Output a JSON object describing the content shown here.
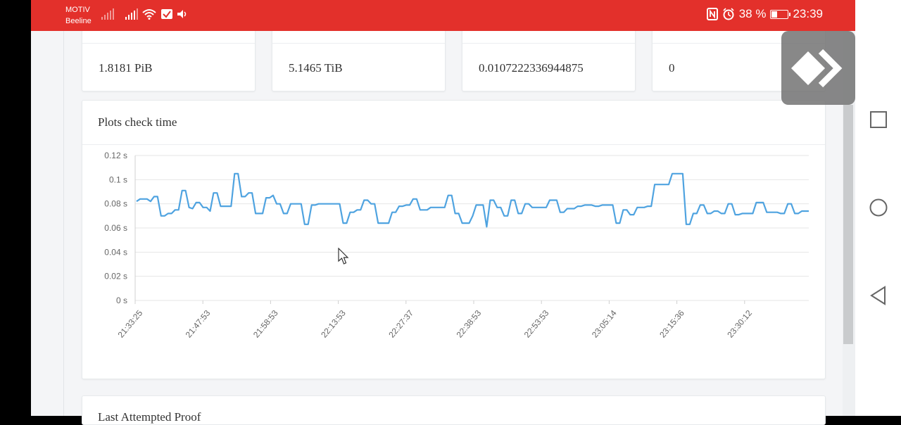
{
  "status_bar": {
    "carrier_1": "MOTIV",
    "carrier_2": "Beeline",
    "battery_text": "38 %",
    "time": "23:39",
    "background": "#e3302b"
  },
  "stats": [
    {
      "value": "1.8181 PiB"
    },
    {
      "value": "5.1465 TiB"
    },
    {
      "value": "0.0107222336944875"
    },
    {
      "value": "0"
    }
  ],
  "chart_card": {
    "title": "Plots check time",
    "line_color": "#4fa3e0"
  },
  "chart_data": {
    "type": "line",
    "title": "Plots check time",
    "ylim": [
      0,
      0.12
    ],
    "y_unit": "s",
    "y_ticks": [
      "0 s",
      "0.02 s",
      "0.04 s",
      "0.06 s",
      "0.08 s",
      "0.1 s",
      "0.12 s"
    ],
    "x_ticks": [
      "21:33:25",
      "21:47:53",
      "21:58:53",
      "22:13:53",
      "22:27:37",
      "22:38:53",
      "22:53:53",
      "23:05:14",
      "23:15:36",
      "23:30:12"
    ],
    "grid": true,
    "series": [
      {
        "values": [
          0.082,
          0.084,
          0.084,
          0.084,
          0.082,
          0.086,
          0.086,
          0.07,
          0.07,
          0.072,
          0.072,
          0.075,
          0.075,
          0.091,
          0.091,
          0.077,
          0.076,
          0.081,
          0.081,
          0.077,
          0.077,
          0.074,
          0.089,
          0.089,
          0.078,
          0.078,
          0.078,
          0.078,
          0.105,
          0.105,
          0.086,
          0.086,
          0.089,
          0.089,
          0.072,
          0.072,
          0.072,
          0.085,
          0.085,
          0.087,
          0.08,
          0.08,
          0.072,
          0.072,
          0.08,
          0.08,
          0.08,
          0.08,
          0.063,
          0.063,
          0.079,
          0.079,
          0.08,
          0.08,
          0.08,
          0.08,
          0.08,
          0.08,
          0.08,
          0.064,
          0.064,
          0.073,
          0.073,
          0.075,
          0.075,
          0.083,
          0.083,
          0.08,
          0.08,
          0.064,
          0.064,
          0.064,
          0.064,
          0.073,
          0.073,
          0.078,
          0.078,
          0.079,
          0.079,
          0.084,
          0.084,
          0.075,
          0.075,
          0.075,
          0.077,
          0.077,
          0.077,
          0.077,
          0.077,
          0.087,
          0.087,
          0.072,
          0.072,
          0.064,
          0.064,
          0.064,
          0.07,
          0.079,
          0.079,
          0.079,
          0.061,
          0.083,
          0.083,
          0.077,
          0.077,
          0.07,
          0.07,
          0.083,
          0.083,
          0.072,
          0.072,
          0.08,
          0.08,
          0.077,
          0.077,
          0.077,
          0.077,
          0.077,
          0.083,
          0.083,
          0.083,
          0.073,
          0.073,
          0.076,
          0.076,
          0.076,
          0.078,
          0.078,
          0.079,
          0.079,
          0.079,
          0.078,
          0.078,
          0.079,
          0.079,
          0.079,
          0.079,
          0.064,
          0.064,
          0.075,
          0.075,
          0.071,
          0.071,
          0.077,
          0.077,
          0.077,
          0.078,
          0.078,
          0.096,
          0.096,
          0.096,
          0.096,
          0.096,
          0.105,
          0.105,
          0.105,
          0.105,
          0.063,
          0.063,
          0.072,
          0.072,
          0.079,
          0.079,
          0.072,
          0.072,
          0.074,
          0.074,
          0.072,
          0.072,
          0.08,
          0.08,
          0.071,
          0.071,
          0.072,
          0.072,
          0.072,
          0.072,
          0.081,
          0.081,
          0.081,
          0.073,
          0.073,
          0.073,
          0.073,
          0.072,
          0.072,
          0.08,
          0.08,
          0.072,
          0.072,
          0.074,
          0.074,
          0.074
        ]
      }
    ]
  },
  "next_card": {
    "title": "Last Attempted Proof"
  },
  "float_button_icon": "diamond-arrow-icon",
  "nav_icons": [
    "square-icon",
    "circle-icon",
    "triangle-back-icon"
  ]
}
